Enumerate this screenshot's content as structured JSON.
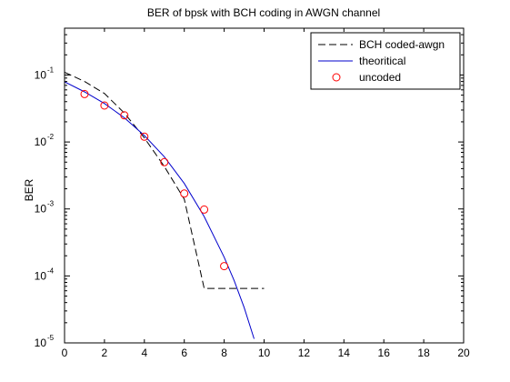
{
  "chart_data": {
    "type": "line",
    "title": "BER of bpsk with BCH coding in AWGN channel",
    "xlabel": "",
    "ylabel": "BER",
    "xlim": [
      0,
      20
    ],
    "ylim": [
      1e-05,
      0.5
    ],
    "yscale": "log",
    "grid": false,
    "legend_position": "top-right",
    "x_ticks": [
      0,
      2,
      4,
      6,
      8,
      10,
      12,
      14,
      16,
      18,
      20
    ],
    "x_tick_labels": [
      "0",
      "2",
      "4",
      "6",
      "8",
      "10",
      "12",
      "14",
      "16",
      "18",
      "20"
    ],
    "y_ticks": [
      0.1,
      0.01,
      0.001,
      0.0001,
      1e-05
    ],
    "y_tick_labels": [
      {
        "base": "10",
        "exp": "-1"
      },
      {
        "base": "10",
        "exp": "-2"
      },
      {
        "base": "10",
        "exp": "-3"
      },
      {
        "base": "10",
        "exp": "-4"
      },
      {
        "base": "10",
        "exp": "-5"
      }
    ],
    "series": [
      {
        "name": "BCH coded-awgn",
        "style": "dashed",
        "color": "#000000",
        "x": [
          0,
          1,
          2,
          3,
          4,
          5,
          6,
          7,
          8,
          9,
          10
        ],
        "y": [
          0.11,
          0.08,
          0.053,
          0.027,
          0.0115,
          0.0043,
          0.0014,
          6.5e-05,
          6.5e-05,
          6.5e-05,
          6.5e-05
        ]
      },
      {
        "name": "theoritical",
        "style": "solid",
        "color": "#0000cc",
        "x": [
          0,
          1,
          2,
          3,
          4,
          5,
          6,
          7,
          8,
          8.5,
          9,
          9.5
        ],
        "y": [
          0.079,
          0.056,
          0.0375,
          0.023,
          0.0125,
          0.006,
          0.0024,
          0.00077,
          0.00019,
          8.5e-05,
          3.36e-05,
          1.15e-05
        ]
      },
      {
        "name": "uncoded",
        "style": "markers",
        "marker": "circle",
        "color": "#ff0000",
        "x": [
          1,
          2,
          3,
          4,
          5,
          6,
          7,
          8
        ],
        "y": [
          0.052,
          0.035,
          0.025,
          0.012,
          0.005,
          0.0017,
          0.00098,
          0.00014
        ]
      }
    ]
  }
}
